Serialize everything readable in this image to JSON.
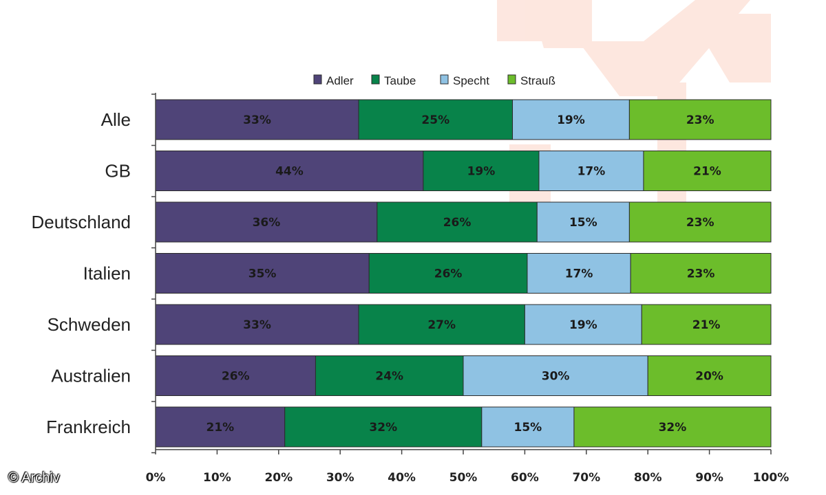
{
  "copyright": "© Archiv",
  "chart_data": {
    "type": "bar",
    "orientation": "horizontal",
    "stacked": true,
    "categories": [
      "Alle",
      "GB",
      "Deutschland",
      "Italien",
      "Schweden",
      "Australien",
      "Frankreich"
    ],
    "series": [
      {
        "name": "Adler",
        "color": "#4f4478",
        "values": [
          33,
          44,
          36,
          35,
          33,
          26,
          21
        ]
      },
      {
        "name": "Taube",
        "color": "#08834a",
        "values": [
          25,
          19,
          26,
          26,
          27,
          24,
          32
        ]
      },
      {
        "name": "Specht",
        "color": "#8fc2e3",
        "values": [
          19,
          17,
          15,
          17,
          19,
          30,
          15
        ]
      },
      {
        "name": "Strauß",
        "color": "#6cbd2b",
        "values": [
          23,
          21,
          23,
          23,
          21,
          20,
          32
        ]
      }
    ],
    "segment_ranges": [
      [
        [
          0,
          33
        ],
        [
          33,
          58
        ],
        [
          58,
          77
        ],
        [
          77,
          100
        ]
      ],
      [
        [
          0,
          43.5
        ],
        [
          43.5,
          62.3
        ],
        [
          62.3,
          79.3
        ],
        [
          79.3,
          100
        ]
      ],
      [
        [
          0,
          36
        ],
        [
          36,
          62
        ],
        [
          62,
          77
        ],
        [
          77,
          100
        ]
      ],
      [
        [
          0,
          34.7
        ],
        [
          34.7,
          60.4
        ],
        [
          60.4,
          77.2
        ],
        [
          77.2,
          100
        ]
      ],
      [
        [
          0,
          33
        ],
        [
          33,
          60
        ],
        [
          60,
          79
        ],
        [
          79,
          100
        ]
      ],
      [
        [
          0,
          26
        ],
        [
          26,
          50
        ],
        [
          50,
          80
        ],
        [
          80,
          100
        ]
      ],
      [
        [
          0,
          21
        ],
        [
          21,
          53
        ],
        [
          53,
          68
        ],
        [
          68,
          100
        ]
      ]
    ],
    "value_suffix": "%",
    "xticks": [
      "0%",
      "10%",
      "20%",
      "30%",
      "40%",
      "50%",
      "60%",
      "70%",
      "80%",
      "90%",
      "100%"
    ],
    "xlim": [
      0,
      100
    ],
    "legend_position": "top",
    "grid": false
  }
}
